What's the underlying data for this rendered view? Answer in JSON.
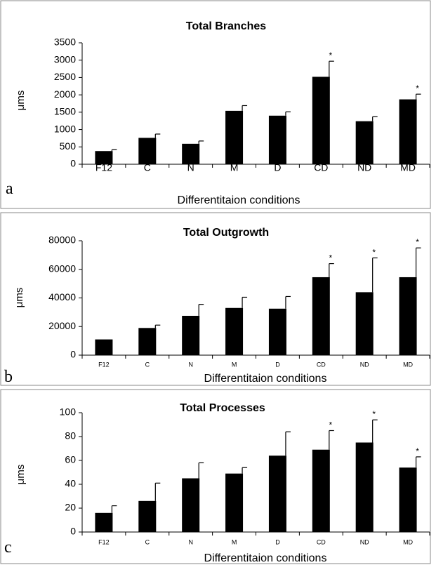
{
  "chart_data": [
    {
      "type": "bar",
      "panel_label": "a",
      "title": "Total Branches",
      "xlabel": "Differentitaion conditions",
      "ylabel": "μms",
      "categories": [
        "F12",
        "C",
        "N",
        "M",
        "D",
        "CD",
        "ND",
        "MD"
      ],
      "values": [
        380,
        760,
        590,
        1540,
        1400,
        2520,
        1240,
        1870
      ],
      "errors": [
        40,
        110,
        80,
        150,
        110,
        450,
        130,
        150
      ],
      "significant": [
        false,
        false,
        false,
        false,
        false,
        true,
        false,
        true
      ],
      "significance_marker": "*",
      "ylim": [
        0,
        3500
      ],
      "yticks": [
        0,
        500,
        1000,
        1500,
        2000,
        2500,
        3000,
        3500
      ],
      "ytick_labels": [
        "0",
        "500",
        "1000",
        "1500",
        "2000",
        "2500",
        "3000",
        "3500"
      ]
    },
    {
      "type": "bar",
      "panel_label": "b",
      "title": "Total Outgrowth",
      "xlabel": "Differentitaion conditions",
      "ylabel": "μms",
      "categories": [
        "F12",
        "C",
        "N",
        "M",
        "D",
        "CD",
        "ND",
        "MD"
      ],
      "values": [
        11000,
        19000,
        27500,
        33000,
        32500,
        54500,
        44000,
        54500
      ],
      "errors": [
        0,
        2000,
        8000,
        7500,
        8500,
        9500,
        24000,
        20500
      ],
      "significant": [
        false,
        false,
        false,
        false,
        false,
        true,
        true,
        true
      ],
      "significance_marker": "*",
      "ylim": [
        0,
        80000
      ],
      "yticks": [
        0,
        20000,
        40000,
        60000,
        80000
      ],
      "ytick_labels": [
        "0",
        "20000",
        "40000",
        "60000",
        "80000"
      ]
    },
    {
      "type": "bar",
      "panel_label": "c",
      "title": "Total Processes",
      "xlabel": "Differentitaion conditions",
      "ylabel": "μms",
      "categories": [
        "F12",
        "C",
        "N",
        "M",
        "D",
        "CD",
        "ND",
        "MD"
      ],
      "values": [
        16,
        26,
        45,
        49,
        64,
        69,
        75,
        54
      ],
      "errors": [
        6,
        15,
        13,
        5,
        20,
        16,
        19,
        9
      ],
      "significant": [
        false,
        false,
        false,
        false,
        false,
        true,
        true,
        true
      ],
      "significance_marker": "*",
      "ylim": [
        0,
        100
      ],
      "yticks": [
        0,
        20,
        40,
        60,
        80,
        100
      ],
      "ytick_labels": [
        "0",
        "20",
        "40",
        "60",
        "80",
        "100"
      ]
    }
  ]
}
